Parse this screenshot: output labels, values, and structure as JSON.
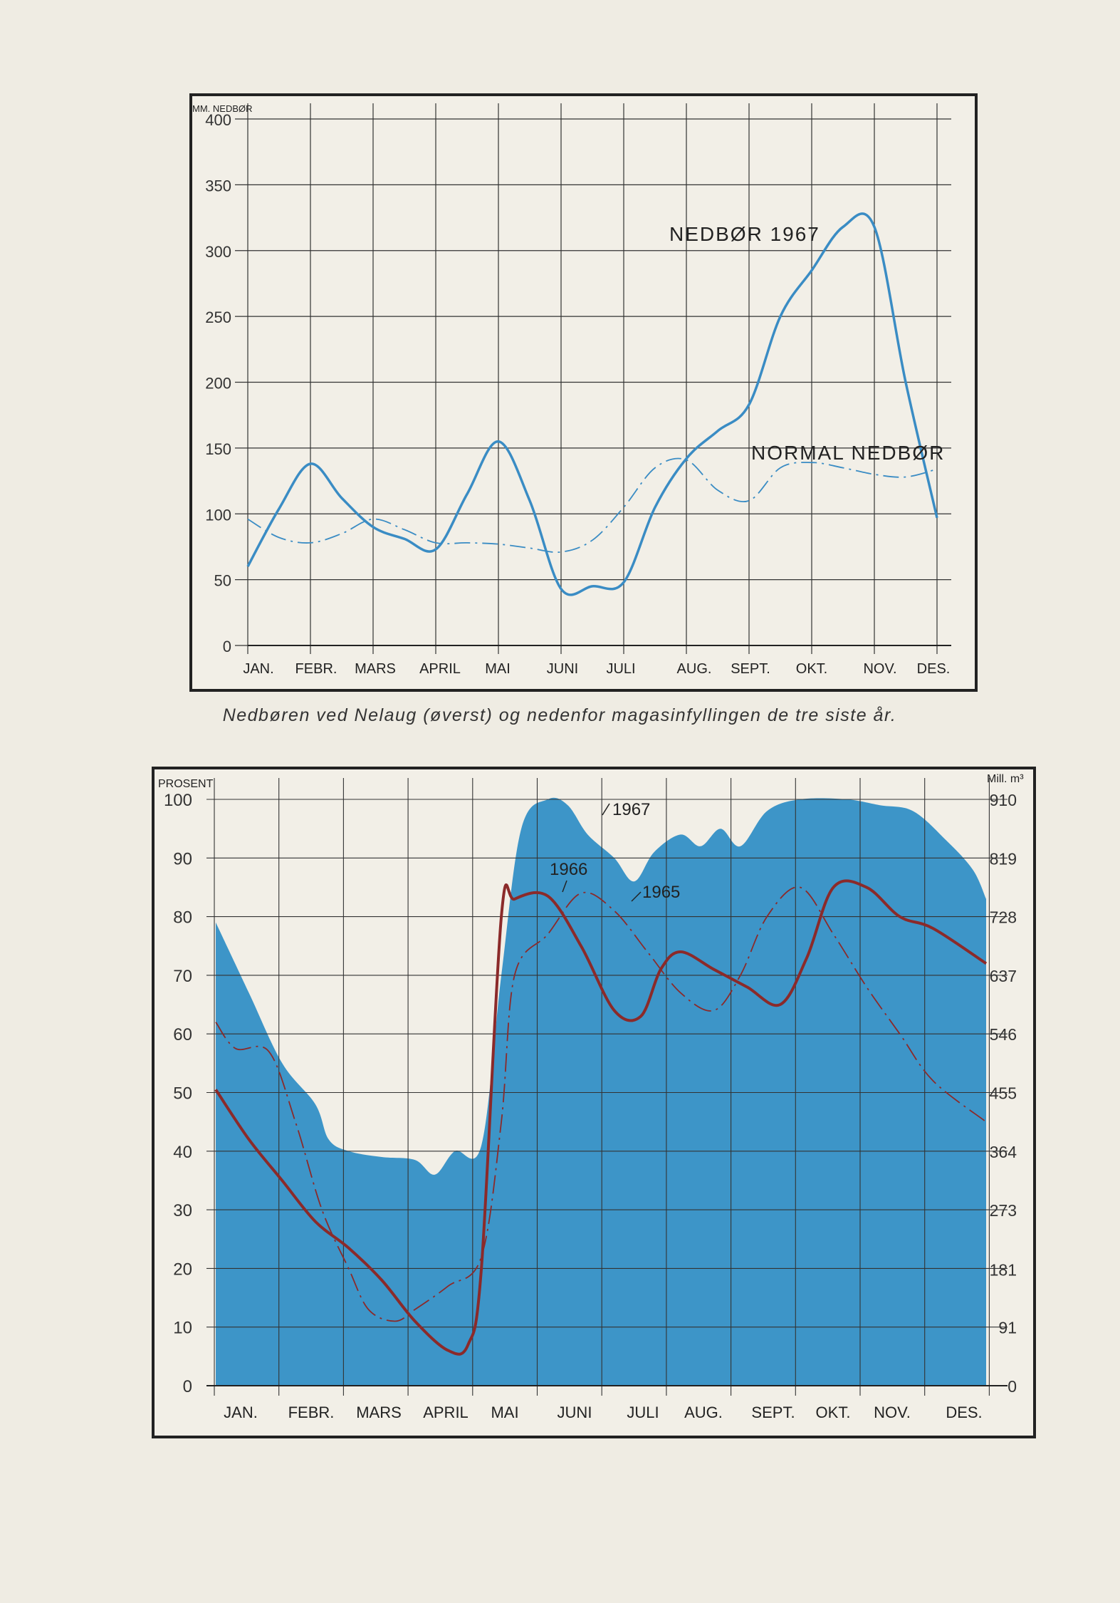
{
  "caption": "Nedbøren ved Nelaug (øverst) og nedenfor magasinfyllingen de tre siste år.",
  "colors": {
    "background": "#efece3",
    "line_blue": "#3a8cc4",
    "area_blue": "#3d95c8",
    "red": "#8b2a2a",
    "frame": "#222222",
    "grid": "#333333"
  },
  "chart_data": [
    {
      "type": "line",
      "title": "",
      "ylabel": "MM. NEDBØR",
      "xlabel": "",
      "ylim": [
        0,
        400
      ],
      "yticks": [
        0,
        50,
        100,
        150,
        200,
        250,
        300,
        350,
        400
      ],
      "grid": true,
      "categories": [
        "JAN.",
        "FEBR.",
        "MARS",
        "APRIL",
        "MAI",
        "JUNI",
        "JULI",
        "AUG.",
        "SEPT.",
        "OKT.",
        "NOV.",
        "DES."
      ],
      "series": [
        {
          "name": "NEDBØR 1967",
          "style": "solid",
          "points": [
            [
              0,
              60
            ],
            [
              0.5,
              104
            ],
            [
              1,
              138
            ],
            [
              1.5,
              112
            ],
            [
              2,
              90
            ],
            [
              2.5,
              81
            ],
            [
              3,
              73
            ],
            [
              3.5,
              115
            ],
            [
              4,
              155
            ],
            [
              4.5,
              110
            ],
            [
              5,
              43
            ],
            [
              5.5,
              45
            ],
            [
              6,
              48
            ],
            [
              6.5,
              105
            ],
            [
              7,
              142
            ],
            [
              7.5,
              163
            ],
            [
              8,
              183
            ],
            [
              8.5,
              250
            ],
            [
              9,
              285
            ],
            [
              9.5,
              318
            ],
            [
              10,
              318
            ],
            [
              10.5,
              200
            ],
            [
              11,
              97
            ]
          ]
        },
        {
          "name": "NORMAL NEDBØR",
          "style": "dash-dot",
          "points": [
            [
              0,
              96
            ],
            [
              0.5,
              82
            ],
            [
              1,
              78
            ],
            [
              1.5,
              85
            ],
            [
              2,
              96
            ],
            [
              2.5,
              88
            ],
            [
              3,
              78
            ],
            [
              3.5,
              78
            ],
            [
              4,
              77
            ],
            [
              4.5,
              74
            ],
            [
              5,
              71
            ],
            [
              5.5,
              80
            ],
            [
              6,
              105
            ],
            [
              6.5,
              135
            ],
            [
              7,
              141
            ],
            [
              7.5,
              118
            ],
            [
              8,
              110
            ],
            [
              8.5,
              135
            ],
            [
              9,
              139
            ],
            [
              9.5,
              135
            ],
            [
              10,
              130
            ],
            [
              10.5,
              128
            ],
            [
              11,
              134
            ]
          ]
        }
      ],
      "annotations": [
        "NEDBØR 1967",
        "NORMAL NEDBØR"
      ]
    },
    {
      "type": "area",
      "title": "",
      "ylabel": "PROSENT",
      "y2label": "Mill. m³",
      "xlabel": "",
      "ylim": [
        0,
        100
      ],
      "yticks": [
        0,
        10,
        20,
        30,
        40,
        50,
        60,
        70,
        80,
        90,
        100
      ],
      "y2lim": [
        0,
        910
      ],
      "y2ticks": [
        "0",
        "91",
        "181",
        "273",
        "364",
        "455",
        "546",
        "637",
        "728",
        "819",
        "910"
      ],
      "grid": true,
      "categories": [
        "JAN.",
        "FEBR.",
        "MARS",
        "APRIL",
        "MAI",
        "JUNI",
        "JULI",
        "AUG.",
        "SEPT.",
        "OKT.",
        "NOV.",
        "DES."
      ],
      "series": [
        {
          "name": "1967",
          "style": "filled-area",
          "points": [
            [
              0,
              79
            ],
            [
              0.5,
              67
            ],
            [
              1,
              55
            ],
            [
              1.5,
              48
            ],
            [
              1.7,
              42
            ],
            [
              2,
              40
            ],
            [
              2.5,
              39
            ],
            [
              3,
              38.5
            ],
            [
              3.3,
              36
            ],
            [
              3.6,
              40
            ],
            [
              4,
              41
            ],
            [
              4.3,
              70
            ],
            [
              4.6,
              95
            ],
            [
              5,
              100
            ],
            [
              5.3,
              99
            ],
            [
              5.6,
              94
            ],
            [
              6,
              90
            ],
            [
              6.3,
              86
            ],
            [
              6.6,
              91
            ],
            [
              7,
              94
            ],
            [
              7.3,
              92
            ],
            [
              7.6,
              95
            ],
            [
              7.9,
              92
            ],
            [
              8.3,
              98
            ],
            [
              8.8,
              100
            ],
            [
              9.5,
              100
            ],
            [
              10,
              99
            ],
            [
              10.5,
              98
            ],
            [
              11,
              93
            ],
            [
              11.4,
              88
            ],
            [
              11.6,
              83
            ]
          ]
        },
        {
          "name": "1966",
          "style": "solid",
          "points": [
            [
              0,
              50.5
            ],
            [
              0.5,
              42
            ],
            [
              1,
              35
            ],
            [
              1.5,
              28
            ],
            [
              2,
              23.5
            ],
            [
              2.5,
              18
            ],
            [
              3,
              11
            ],
            [
              3.5,
              6
            ],
            [
              3.8,
              7
            ],
            [
              4,
              20
            ],
            [
              4.3,
              80
            ],
            [
              4.5,
              83
            ],
            [
              5,
              83.5
            ],
            [
              5.5,
              75
            ],
            [
              6,
              64
            ],
            [
              6.4,
              63
            ],
            [
              6.7,
              71
            ],
            [
              7,
              74
            ],
            [
              7.5,
              71
            ],
            [
              8,
              68
            ],
            [
              8.5,
              65
            ],
            [
              8.9,
              73
            ],
            [
              9.3,
              85
            ],
            [
              9.8,
              85
            ],
            [
              10.3,
              80
            ],
            [
              10.8,
              78
            ],
            [
              11.6,
              72
            ]
          ]
        },
        {
          "name": "1965",
          "style": "dash-dot",
          "points": [
            [
              0,
              62
            ],
            [
              0.3,
              57.5
            ],
            [
              0.8,
              57
            ],
            [
              1.2,
              45
            ],
            [
              1.6,
              30
            ],
            [
              2,
              20
            ],
            [
              2.3,
              13
            ],
            [
              2.7,
              11
            ],
            [
              3,
              13
            ],
            [
              3.5,
              17
            ],
            [
              4,
              22
            ],
            [
              4.3,
              45
            ],
            [
              4.5,
              70
            ],
            [
              5,
              77
            ],
            [
              5.5,
              84
            ],
            [
              6,
              81
            ],
            [
              6.5,
              74
            ],
            [
              7,
              67
            ],
            [
              7.5,
              64
            ],
            [
              7.9,
              70
            ],
            [
              8.3,
              80
            ],
            [
              8.8,
              85
            ],
            [
              9.3,
              77
            ],
            [
              9.8,
              68
            ],
            [
              10.3,
              60
            ],
            [
              10.8,
              52
            ],
            [
              11.6,
              45
            ]
          ]
        }
      ],
      "annotations": [
        "1967",
        "1966",
        "1965"
      ]
    }
  ]
}
